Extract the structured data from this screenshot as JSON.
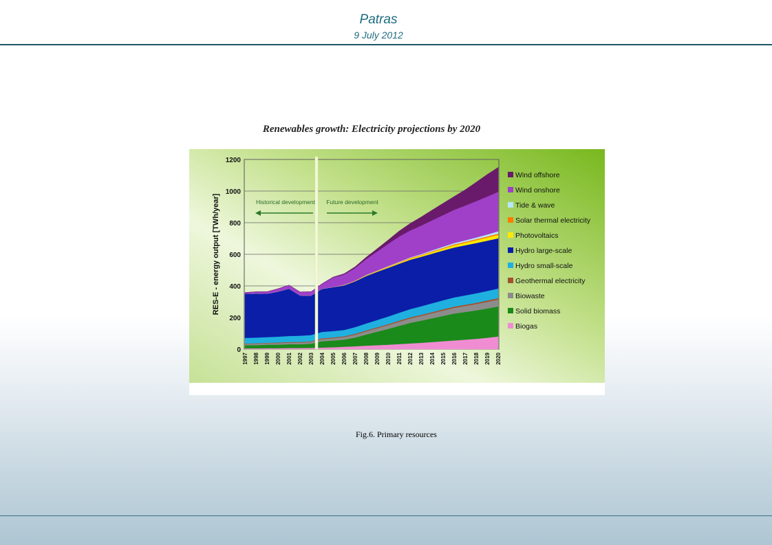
{
  "header": {
    "title": "Patras",
    "date": "9 July 2012"
  },
  "caption": "Fig.6. Primary resources",
  "chart_data": {
    "type": "area",
    "stacked": true,
    "title": "Renewables growth: Electricity projections by 2020",
    "ylabel": "RES-E - energy output [TWh/year]",
    "xlabel": "",
    "ylim": [
      0,
      1200
    ],
    "yticks": [
      0,
      200,
      400,
      600,
      800,
      1000,
      1200
    ],
    "grid": true,
    "legend": "right",
    "annotations": {
      "historical": "Historical development",
      "future": "Future development"
    },
    "x": [
      "1997",
      "1998",
      "1999",
      "2000",
      "2001",
      "2002",
      "2003",
      "2004",
      "2005",
      "2006",
      "2007",
      "2008",
      "2009",
      "2010",
      "2011",
      "2012",
      "2013",
      "2014",
      "2015",
      "2016",
      "2017",
      "2018",
      "2019",
      "2020"
    ],
    "series": [
      {
        "name": "Biogas",
        "color": "#f08cd2",
        "values": [
          5,
          5,
          6,
          6,
          7,
          7,
          8,
          10,
          12,
          15,
          18,
          22,
          25,
          28,
          32,
          36,
          40,
          45,
          50,
          55,
          60,
          65,
          72,
          80
        ]
      },
      {
        "name": "Solid biomass",
        "color": "#1a8a1a",
        "values": [
          20,
          20,
          22,
          22,
          24,
          24,
          26,
          40,
          42,
          45,
          55,
          70,
          85,
          100,
          115,
          130,
          140,
          150,
          160,
          170,
          175,
          180,
          185,
          190
        ]
      },
      {
        "name": "Biowaste",
        "color": "#8c8c8c",
        "values": [
          8,
          9,
          9,
          10,
          10,
          11,
          11,
          14,
          15,
          16,
          18,
          20,
          22,
          24,
          26,
          28,
          30,
          32,
          34,
          36,
          38,
          40,
          42,
          44
        ]
      },
      {
        "name": "Geothermal electricity",
        "color": "#a0522d",
        "values": [
          3,
          3,
          3,
          4,
          4,
          4,
          4,
          5,
          5,
          5,
          6,
          6,
          6,
          6,
          7,
          7,
          7,
          7,
          8,
          8,
          8,
          8,
          9,
          9
        ]
      },
      {
        "name": "Hydro small-scale",
        "color": "#1fb0e0",
        "values": [
          35,
          36,
          36,
          37,
          38,
          39,
          40,
          40,
          40,
          40,
          42,
          44,
          46,
          48,
          50,
          52,
          54,
          56,
          57,
          58,
          59,
          60,
          60,
          60
        ]
      },
      {
        "name": "Hydro large-scale",
        "color": "#0a1ea8",
        "values": [
          280,
          280,
          275,
          285,
          300,
          255,
          250,
          272,
          278,
          282,
          290,
          300,
          305,
          308,
          310,
          312,
          313,
          314,
          315,
          316,
          317,
          318,
          318,
          318
        ]
      },
      {
        "name": "Photovoltaics",
        "color": "#ffe800",
        "values": [
          0,
          0,
          0,
          0,
          0,
          0,
          0,
          1,
          1,
          2,
          2,
          3,
          4,
          5,
          6,
          7,
          8,
          10,
          12,
          14,
          16,
          18,
          20,
          22
        ]
      },
      {
        "name": "Solar thermal electricity",
        "color": "#ff7a00",
        "values": [
          0,
          0,
          0,
          0,
          0,
          0,
          0,
          0,
          0,
          1,
          1,
          2,
          2,
          3,
          3,
          4,
          4,
          5,
          5,
          6,
          6,
          7,
          7,
          8
        ]
      },
      {
        "name": "Tide & wave",
        "color": "#b8e8ff",
        "values": [
          0,
          0,
          0,
          0,
          0,
          0,
          0,
          0,
          0,
          1,
          1,
          2,
          2,
          3,
          3,
          4,
          5,
          6,
          7,
          8,
          9,
          10,
          12,
          14
        ]
      },
      {
        "name": "Wind onshore",
        "color": "#a040c8",
        "values": [
          7,
          10,
          12,
          18,
          22,
          22,
          24,
          30,
          60,
          65,
          80,
          100,
          120,
          140,
          160,
          170,
          180,
          190,
          200,
          210,
          220,
          230,
          240,
          250
        ]
      },
      {
        "name": "Wind offshore",
        "color": "#6a1a6a",
        "values": [
          0,
          0,
          0,
          0,
          0,
          0,
          0,
          2,
          3,
          5,
          8,
          12,
          18,
          25,
          35,
          45,
          55,
          65,
          75,
          85,
          100,
          120,
          140,
          155
        ]
      }
    ]
  }
}
